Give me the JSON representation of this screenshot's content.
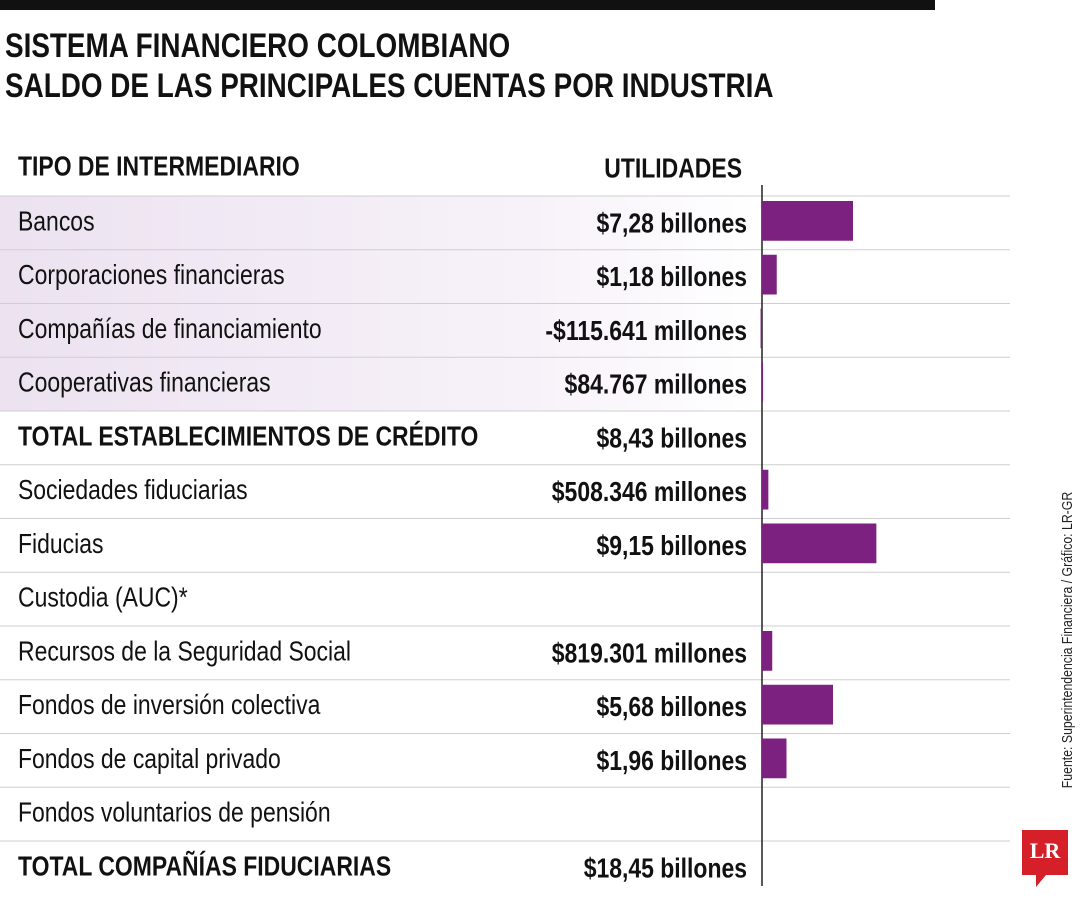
{
  "chart_data": {
    "type": "bar",
    "title": [
      "SISTEMA FINANCIERO COLOMBIANO",
      "SALDO DE LAS PRINCIPALES CUENTAS POR INDUSTRIA"
    ],
    "header": [
      "TIPO DE INTERMEDIARIO",
      "UTILIDADES"
    ],
    "categories": [
      "Bancos",
      "Corporaciones financieras",
      "Compañías de financiamiento",
      "Cooperativas financieras",
      "TOTAL ESTABLECIMIENTOS DE CRÉDITO",
      "Sociedades fiduciarias",
      "Fiducias",
      "Custodia (AUC)*",
      "Recursos de la Seguridad Social",
      "Fondos de inversión colectiva",
      "Fondos de capital privado",
      "Fondos voluntarios de pensión",
      "TOTAL COMPAÑÍAS FIDUCIARIAS"
    ],
    "values": [
      7.28,
      1.18,
      -0.115641,
      0.084767,
      8.43,
      0.508346,
      9.15,
      null,
      0.819301,
      5.68,
      1.96,
      null,
      18.45
    ],
    "value_labels": [
      "$7,28 billones",
      "$1,18 billones",
      "-$115.641 millones",
      "$84.767 millones",
      "$8,43 billones",
      "$508.346 millones",
      "$9,15 billones",
      null,
      "$819.301 millones",
      "$5,68 billones",
      "$1,96 billones",
      null,
      "$18,45 billones"
    ],
    "totals": [
      false,
      false,
      false,
      false,
      true,
      false,
      false,
      false,
      false,
      false,
      false,
      false,
      true
    ],
    "color": "#7d2181",
    "source": "Fuente: Superintendencia Financiera / Gráfico: LR-GR",
    "logo": "LR"
  }
}
